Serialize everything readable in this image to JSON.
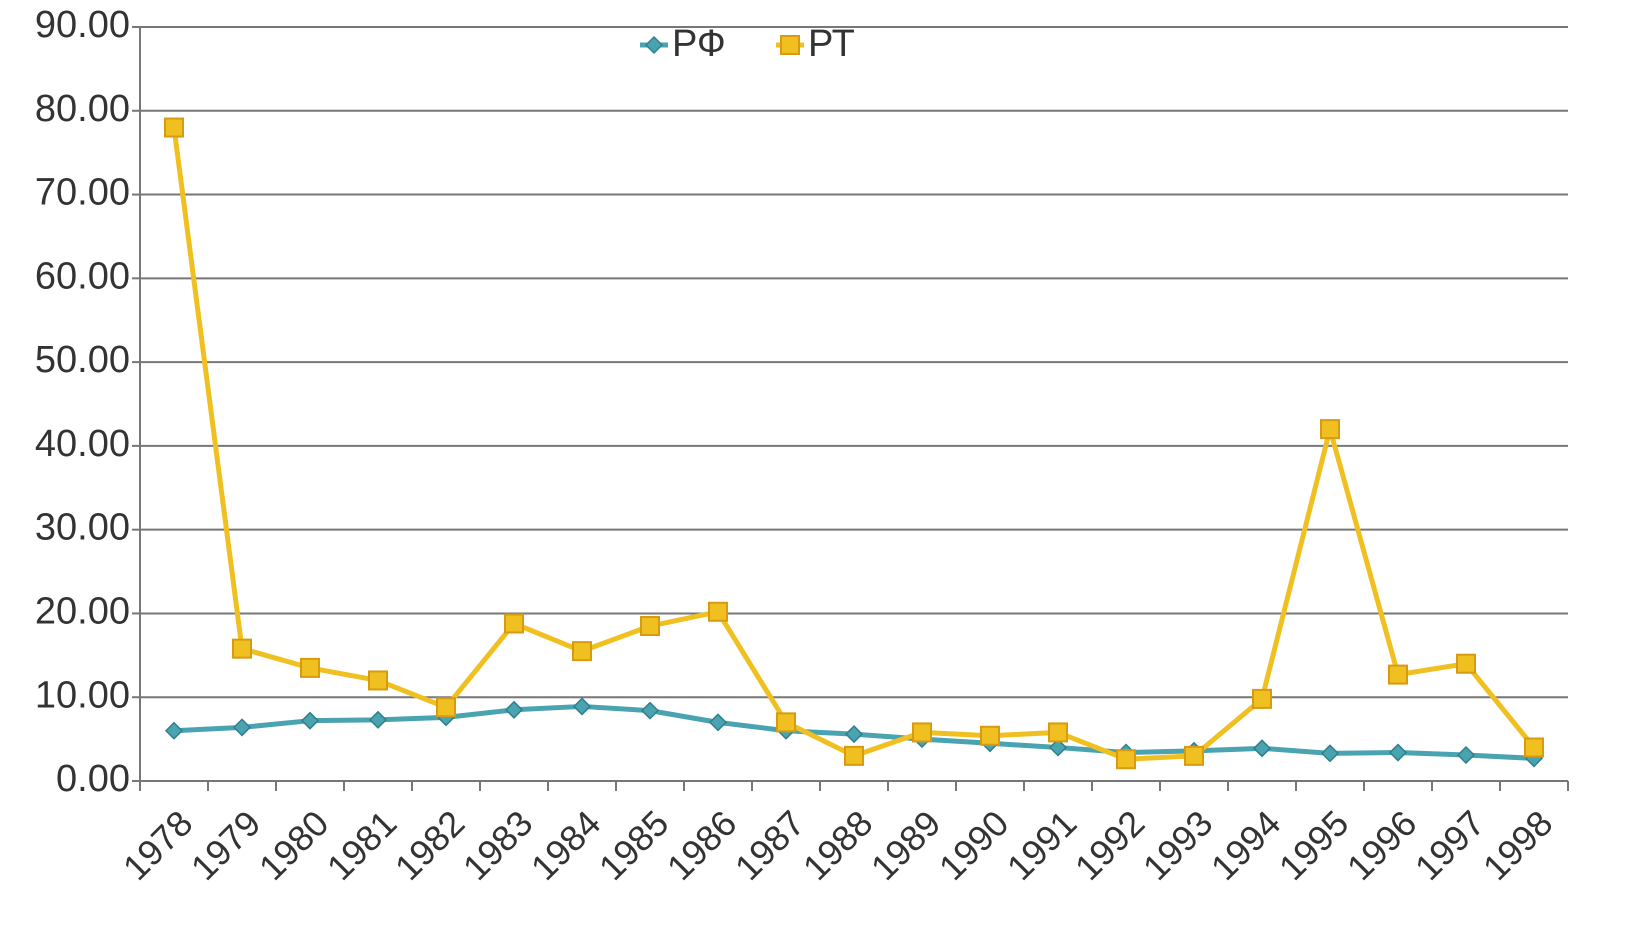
{
  "chart_data": {
    "type": "line",
    "categories": [
      "1978",
      "1979",
      "1980",
      "1981",
      "1982",
      "1983",
      "1984",
      "1985",
      "1986",
      "1987",
      "1988",
      "1989",
      "1990",
      "1991",
      "1992",
      "1993",
      "1994",
      "1995",
      "1996",
      "1997",
      "1998"
    ],
    "series": [
      {
        "name": "РФ",
        "color": "#4aa3b0",
        "marker": "diamond",
        "values": [
          6,
          6.4,
          7.2,
          7.3,
          7.6,
          8.5,
          8.9,
          8.4,
          7,
          6,
          5.6,
          5,
          4.5,
          4,
          3.4,
          3.6,
          3.9,
          3.3,
          3.4,
          3.1,
          2.7
        ]
      },
      {
        "name": "РТ",
        "color": "#f0c020",
        "marker": "square",
        "values": [
          78,
          15.8,
          13.5,
          12,
          8.8,
          18.8,
          15.5,
          18.5,
          20.2,
          7,
          3,
          5.8,
          5.4,
          5.8,
          2.6,
          3,
          9.8,
          42,
          12.7,
          14,
          4
        ]
      }
    ],
    "ylim": [
      0,
      90
    ],
    "yticks": [
      {
        "value": 0,
        "label": "0.00"
      },
      {
        "value": 10,
        "label": "10.00"
      },
      {
        "value": 20,
        "label": "20.00"
      },
      {
        "value": 30,
        "label": "30.00"
      },
      {
        "value": 40,
        "label": "40.00"
      },
      {
        "value": 50,
        "label": "50.00"
      },
      {
        "value": 60,
        "label": "60.00"
      },
      {
        "value": 70,
        "label": "70.00"
      },
      {
        "value": 80,
        "label": "80.00"
      },
      {
        "value": 90,
        "label": "90.00"
      }
    ],
    "grid": true,
    "legend": "top"
  }
}
